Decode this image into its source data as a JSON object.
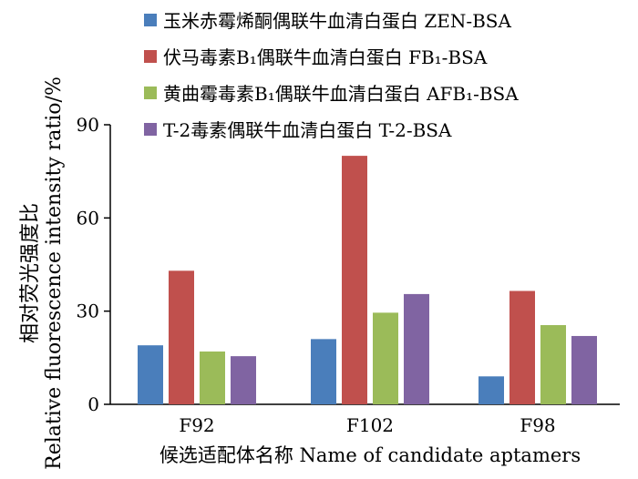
{
  "chart_data": {
    "type": "bar",
    "categories": [
      "F92",
      "F102",
      "F98"
    ],
    "series": [
      {
        "name": "玉米赤霉烯酮偶联牛血清白蛋白 ZEN-BSA",
        "color": "#4a7ebb",
        "values": [
          19,
          21,
          9
        ]
      },
      {
        "name": "伏马毒素B₁偶联牛血清白蛋白 FB₁-BSA",
        "color": "#c0504d",
        "values": [
          43,
          80,
          36.5
        ]
      },
      {
        "name": "黄曲霉毒素B₁偶联牛血清白蛋白 AFB₁-BSA",
        "color": "#9bbb59",
        "values": [
          17,
          29.5,
          25.5
        ]
      },
      {
        "name": "T-2毒素偶联牛血清白蛋白 T-2-BSA",
        "color": "#8064a2",
        "values": [
          15.5,
          35.5,
          22
        ]
      }
    ],
    "ylim": [
      0,
      90
    ],
    "yticks": [
      0,
      30,
      60,
      90
    ],
    "ylabel_cn": "相对荧光强度比",
    "ylabel_en": "Relative fluorescence intensity ratio/%",
    "xlabel": "候选适配体名称  Name of candidate aptamers",
    "legend_position": "top-right",
    "grid": false
  }
}
